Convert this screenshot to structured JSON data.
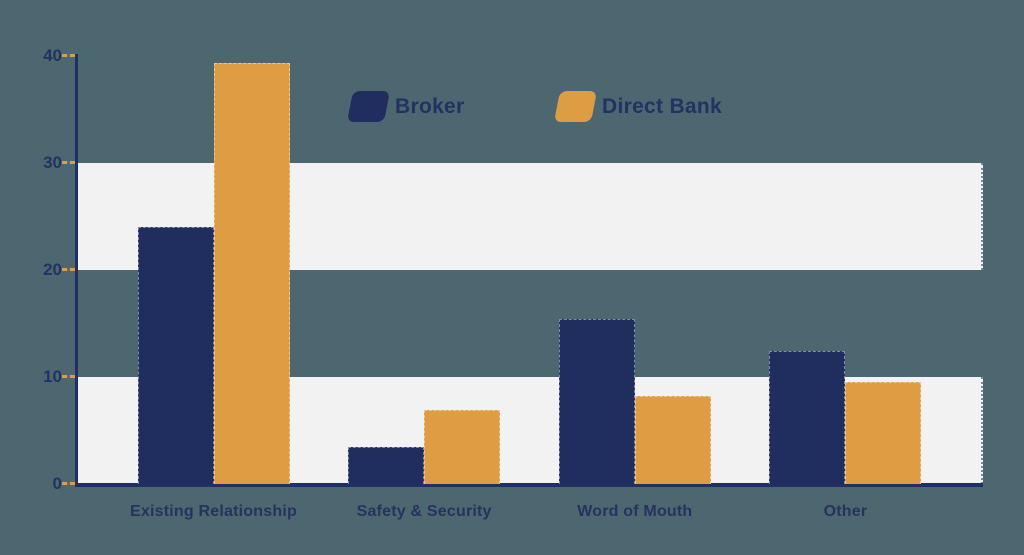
{
  "chart_data": {
    "type": "bar",
    "categories": [
      "Existing Relationship",
      "Safety & Security",
      "Word of Mouth",
      "Other"
    ],
    "series": [
      {
        "name": "Broker",
        "color": "#1f2e5f",
        "values": [
          24,
          3.5,
          15.4,
          12.4
        ]
      },
      {
        "name": "Direct Bank",
        "color": "#de9c43",
        "values": [
          39.4,
          6.9,
          8.2,
          9.5
        ]
      }
    ],
    "ylim": [
      0,
      40
    ],
    "y_ticks": [
      0,
      10,
      20,
      30,
      40
    ],
    "shaded_bands": [
      [
        0,
        10
      ],
      [
        20,
        30
      ]
    ],
    "legend_position": "top-center",
    "grid": "off"
  },
  "colors": {
    "background": "#4c6770",
    "band_fill": "#f2f2f3",
    "axis": "#203062",
    "tick_dash": "#de9c43",
    "label_text": "#223263"
  }
}
